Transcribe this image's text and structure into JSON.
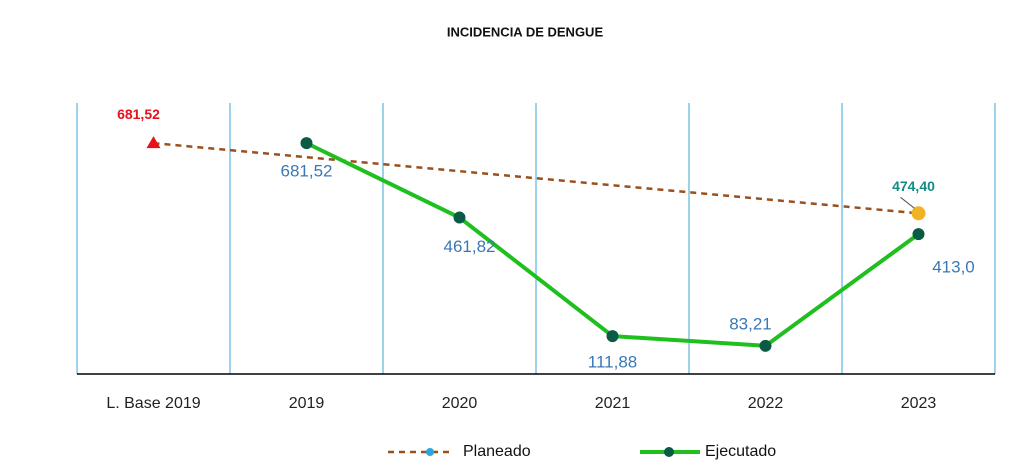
{
  "chart_data": {
    "type": "line",
    "title": "INCIDENCIA  DE DENGUE",
    "categories": [
      "L. Base 2019",
      "2019",
      "2020",
      "2021",
      "2022",
      "2023"
    ],
    "ylim": [
      0,
      800
    ],
    "series": [
      {
        "name": "Planeado",
        "color": "#9a4f1c",
        "dashed": true,
        "values": [
          681.52,
          null,
          null,
          null,
          null,
          474.4
        ],
        "value_labels": [
          "681,52",
          null,
          null,
          null,
          null,
          "474,40"
        ]
      },
      {
        "name": "Ejecutado",
        "color": "#1fbf1f",
        "marker_color": "#0b5a45",
        "values": [
          null,
          681.52,
          461.82,
          111.88,
          83.21,
          413.0
        ],
        "value_labels": [
          null,
          "681,52",
          "461,82",
          "111,88",
          "83,21",
          "413,0"
        ]
      }
    ]
  }
}
